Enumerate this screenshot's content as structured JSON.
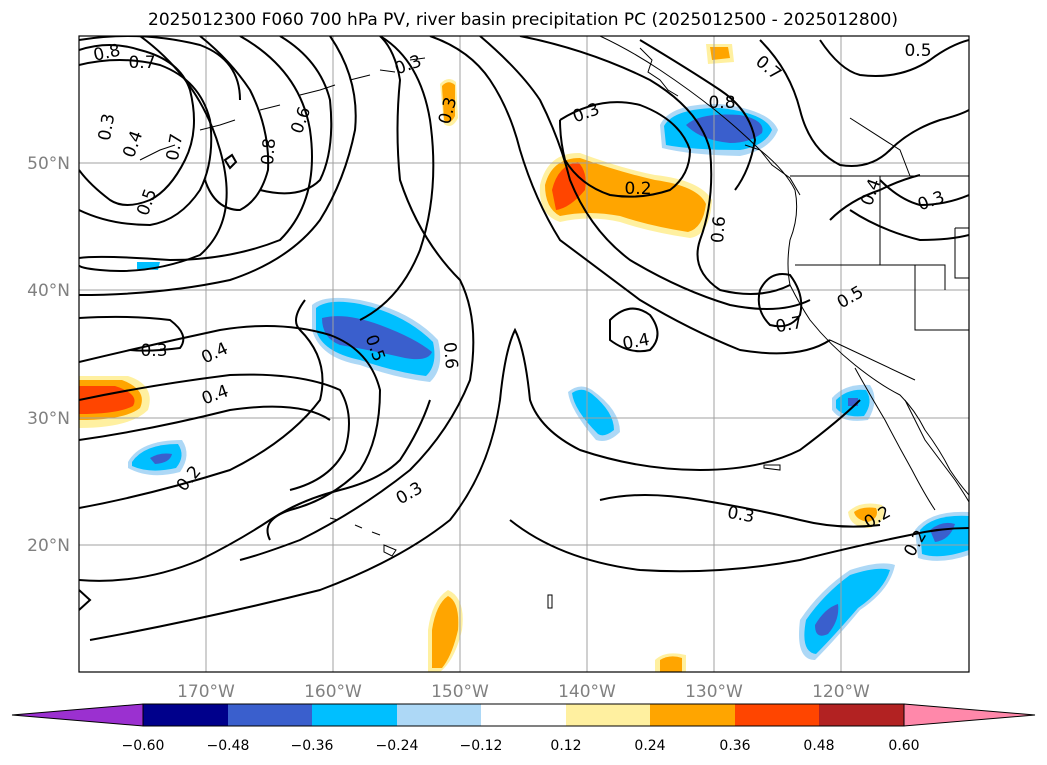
{
  "title": "2025012300 F060 700 hPa PV, river basin precipitation PC (2025012500 - 2025012800)",
  "map": {
    "lon_ticks": [
      "170°W",
      "160°W",
      "150°W",
      "140°W",
      "130°W",
      "120°W"
    ],
    "lat_ticks": [
      "50°N",
      "40°N",
      "30°N",
      "20°N"
    ],
    "grid": true,
    "contour_labels": [
      "0.8",
      "0.7",
      "0.3",
      "0.4",
      "0.7",
      "0.5",
      "0.6",
      "0.8",
      "0.3",
      "0.3",
      "0.5",
      "0.3",
      "0.7",
      "0.8",
      "0.2",
      "0.6",
      "0.4",
      "0.3",
      "0.5",
      "0.7",
      "0.3",
      "0.4",
      "0.4",
      "0.5",
      "0.6",
      "0.4",
      "0.2",
      "0.3",
      "0.3",
      "0.2",
      "0.2"
    ],
    "colors": {
      "positive": [
        "#fff0a0",
        "#ffa500",
        "#ff4500",
        "#b22222",
        "#ff88aa"
      ],
      "negative": [
        "#add8f6",
        "#00bfff",
        "#3a5fcd",
        "#00008b",
        "#9932cc"
      ]
    }
  },
  "colorbar": {
    "ticks": [
      "−0.60",
      "−0.48",
      "−0.36",
      "−0.24",
      "−0.12",
      "0.12",
      "0.24",
      "0.36",
      "0.48",
      "0.60"
    ],
    "colors": [
      "#9b30d0",
      "#00008b",
      "#3a5fcd",
      "#00bfff",
      "#add8f6",
      "#ffffff",
      "#fff0a0",
      "#ffa500",
      "#ff4500",
      "#b22222",
      "#ff88aa"
    ]
  }
}
